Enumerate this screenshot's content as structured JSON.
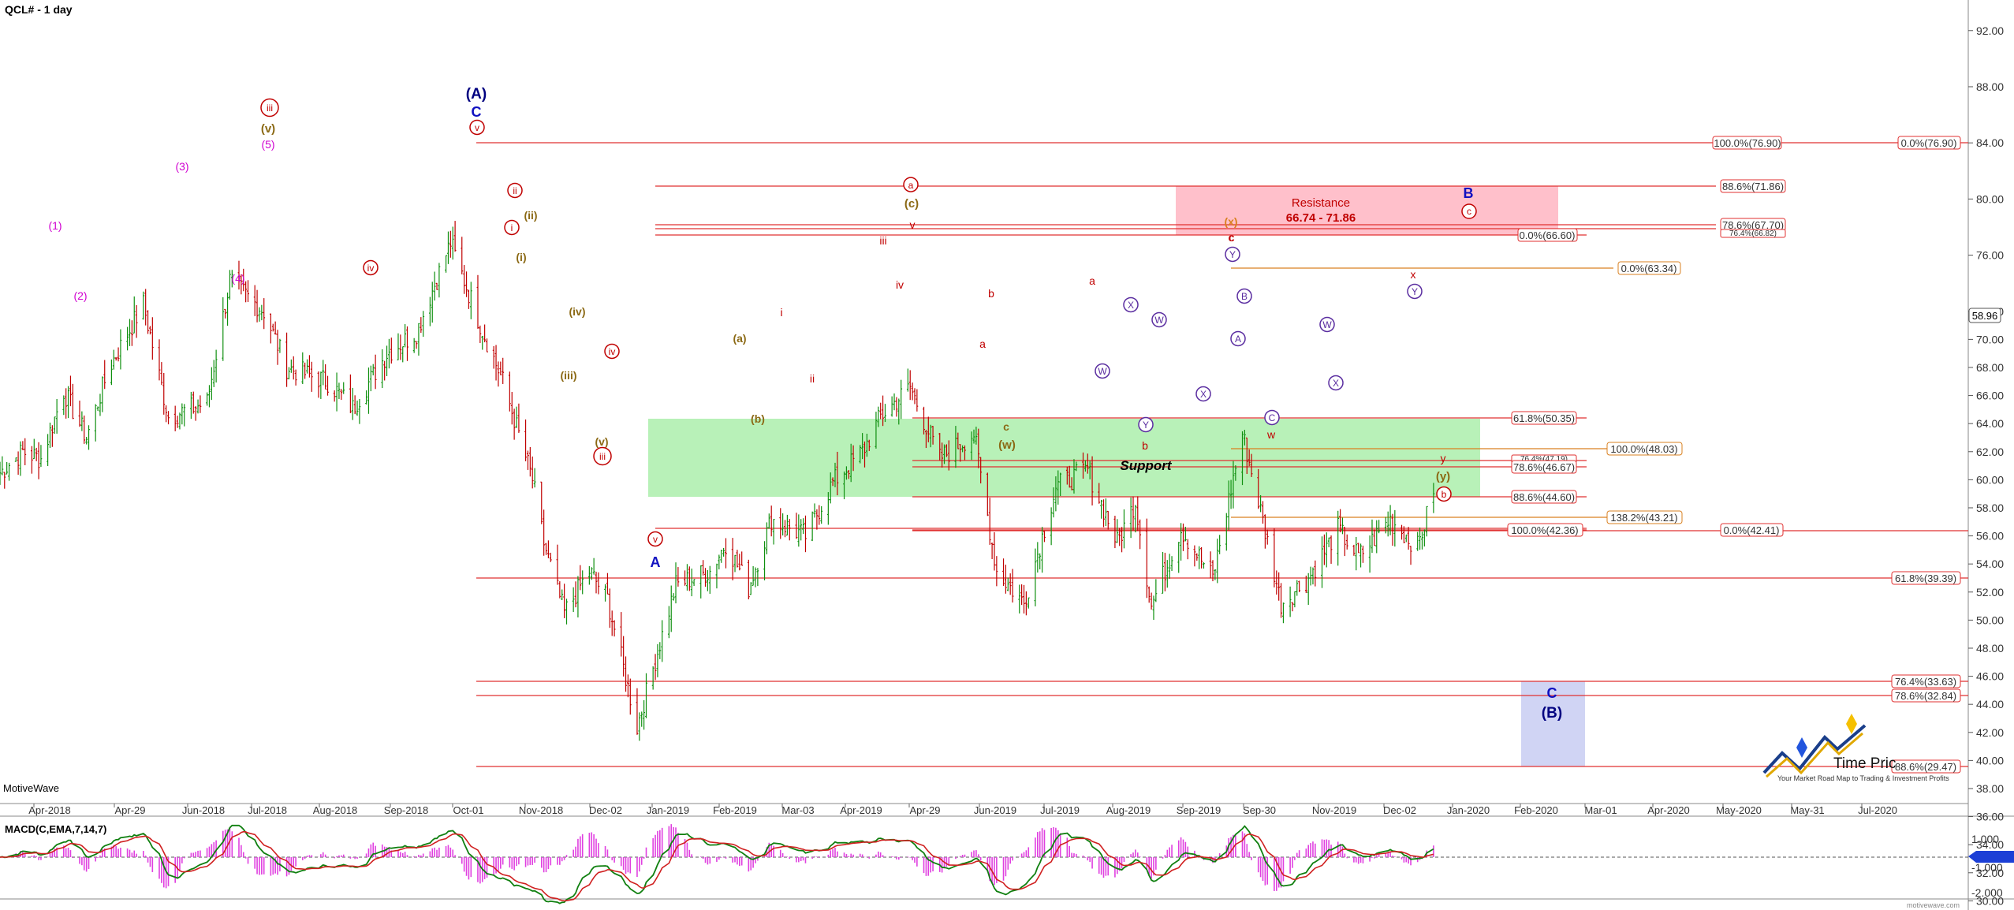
{
  "header": {
    "title": "QCL# - 1 day"
  },
  "brand": {
    "motivewave": "MotiveWave",
    "footer": "motivewave.com",
    "logo_text": "Time Pric",
    "logo_tagline": "Your Market Road Map to Trading & Investment Profits"
  },
  "colors": {
    "fib": "#e03030",
    "orange": "#d98020",
    "blue": "#1010c0",
    "navy": "#000080",
    "red": "#c00000",
    "magenta": "#d000d0",
    "olive": "#8b6914",
    "purple": "#5a2da0",
    "green_zone": "#b4f0b4",
    "red_zone": "#ffc0cb",
    "blue_zone": "#d0d4f4",
    "candle_up": "#109010",
    "candle_down": "#c00000",
    "macd_line": "#108010",
    "signal_line": "#d02020",
    "hist": "#e040e0"
  },
  "price_axis": {
    "ticks": [
      "92.00",
      "88.00",
      "84.00",
      "80.00",
      "76.00",
      "72.00",
      "70.00",
      "68.00",
      "66.00",
      "64.00",
      "62.00",
      "60.00",
      "58.00",
      "56.00",
      "54.00",
      "52.00",
      "50.00",
      "48.00",
      "46.00",
      "44.00",
      "42.00",
      "40.00",
      "38.00",
      "36.00",
      "34.00",
      "32.00",
      "30.00"
    ],
    "last_price": "58.96"
  },
  "date_axis": {
    "labels": [
      "Apr-2018",
      "Apr-29",
      "Jun-2018",
      "Jul-2018",
      "Aug-2018",
      "Sep-2018",
      "Oct-01",
      "Nov-2018",
      "Dec-02",
      "Jan-2019",
      "Feb-2019",
      "Mar-03",
      "Apr-2019",
      "Apr-29",
      "Jun-2019",
      "Jul-2019",
      "Aug-2019",
      "Sep-2019",
      "Sep-30",
      "Nov-2019",
      "Dec-02",
      "Jan-2020",
      "Feb-2020",
      "Mar-01",
      "Apr-2020",
      "May-2020",
      "May-31",
      "Jul-2020"
    ]
  },
  "zones": {
    "resistance_title": "Resistance",
    "resistance_range": "66.74 - 71.86",
    "support_title": "Support"
  },
  "fib_labels": [
    "100.0%(76.90)",
    "0.0%(76.90)",
    "88.6%(71.86)",
    "78.6%(67.70)",
    "76.4%(66.82)",
    "0.0%(66.60)",
    "0.0%(63.34)",
    "61.8%(50.35)",
    "100.0%(48.03)",
    "76.4%(47.19)",
    "78.6%(46.67)",
    "88.6%(44.60)",
    "138.2%(43.21)",
    "100.0%(42.36)",
    "0.0%(42.41)",
    "61.8%(39.39)",
    "76.4%(33.63)",
    "78.6%(32.84)",
    "88.6%(29.47)"
  ],
  "wave_labels": [
    "(A)",
    "C",
    "v",
    "A",
    "v",
    "B",
    "C",
    "(B)",
    "(1)",
    "(2)",
    "(3)",
    "(4)",
    "(5)",
    "(v)",
    "iii",
    "iv",
    "ii",
    "i",
    "(ii)",
    "(i)",
    "(iv)",
    "(iii)",
    "(v)",
    "iii",
    "iv",
    "(a)",
    "(b)",
    "i",
    "ii",
    "iii",
    "iv",
    "v",
    "a",
    "(c)",
    "b",
    "a",
    "c",
    "(w)",
    "a",
    "b",
    "c",
    "(x)",
    "y",
    "(y)",
    "b",
    "X",
    "W",
    "W",
    "Y",
    "X",
    "Y",
    "A",
    "B",
    "C",
    "W",
    "X",
    "Y",
    "c",
    "w",
    "x"
  ],
  "macd": {
    "title": "MACD(C,EMA,7,14,7)",
    "ticks": [
      "1.000",
      "-1.000",
      "-2.000"
    ],
    "current": ""
  },
  "chart_data": {
    "type": "candlestick",
    "title": "QCL# - 1 day",
    "ylim": [
      28.5,
      94
    ],
    "x_range": [
      "2018-03-19",
      "2020-07-31"
    ],
    "series": [
      {
        "name": "price",
        "anchors": [
          [
            "2018-03-19",
            60.5
          ],
          [
            "2018-03-29",
            62
          ],
          [
            "2018-04-06",
            61.5
          ],
          [
            "2018-04-16",
            66.3
          ],
          [
            "2018-04-26",
            63
          ],
          [
            "2018-05-06",
            68
          ],
          [
            "2018-05-21",
            72.5
          ],
          [
            "2018-06-01",
            64.5
          ],
          [
            "2018-06-18",
            65.5
          ],
          [
            "2018-06-28",
            74.2
          ],
          [
            "2018-07-13",
            72
          ],
          [
            "2018-07-23",
            68
          ],
          [
            "2018-08-10",
            67
          ],
          [
            "2018-08-21",
            65.1
          ],
          [
            "2018-09-05",
            69
          ],
          [
            "2018-09-18",
            70.5
          ],
          [
            "2018-10-03",
            76.9
          ],
          [
            "2018-10-15",
            71.5
          ],
          [
            "2018-10-26",
            67
          ],
          [
            "2018-11-08",
            60
          ],
          [
            "2018-11-13",
            55.5
          ],
          [
            "2018-11-22",
            50.5
          ],
          [
            "2018-12-03",
            53.5
          ],
          [
            "2018-12-11",
            51.5
          ],
          [
            "2018-12-24",
            42.4
          ],
          [
            "2019-01-10",
            52.5
          ],
          [
            "2019-01-25",
            53.5
          ],
          [
            "2019-02-01",
            55.5
          ],
          [
            "2019-02-11",
            52.3
          ],
          [
            "2019-02-21",
            57.2
          ],
          [
            "2019-03-08",
            56
          ],
          [
            "2019-03-20",
            59.8
          ],
          [
            "2019-04-02",
            62
          ],
          [
            "2019-04-10",
            64.5
          ],
          [
            "2019-04-23",
            66.6
          ],
          [
            "2019-05-06",
            61.5
          ],
          [
            "2019-05-21",
            63.3
          ],
          [
            "2019-05-31",
            53.5
          ],
          [
            "2019-06-12",
            51.2
          ],
          [
            "2019-06-26",
            59.5
          ],
          [
            "2019-07-10",
            60.7
          ],
          [
            "2019-07-23",
            55.5
          ],
          [
            "2019-07-31",
            58.5
          ],
          [
            "2019-08-07",
            51
          ],
          [
            "2019-08-20",
            56.5
          ],
          [
            "2019-09-03",
            53
          ],
          [
            "2019-09-16",
            63.3
          ],
          [
            "2019-09-23",
            58.5
          ],
          [
            "2019-10-03",
            51.2
          ],
          [
            "2019-10-15",
            53
          ],
          [
            "2019-10-28",
            56.5
          ],
          [
            "2019-11-06",
            54.5
          ],
          [
            "2019-11-20",
            57.2
          ],
          [
            "2019-12-02",
            55.2
          ],
          [
            "2019-12-09",
            59
          ]
        ]
      },
      {
        "name": "MACD(C,EMA,7,14,7)"
      }
    ]
  }
}
